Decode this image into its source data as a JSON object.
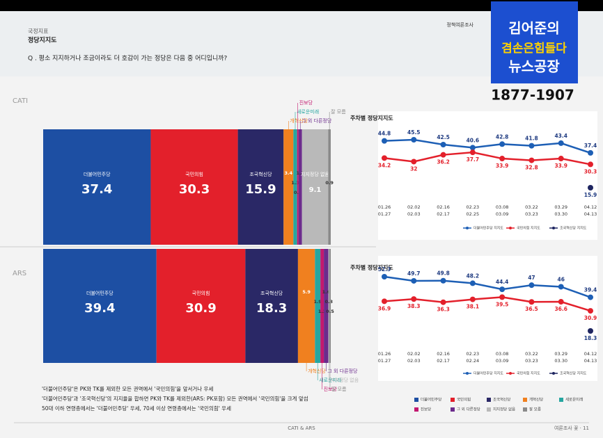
{
  "header": {
    "section": "국정지표",
    "title": "정당지지도",
    "question": "Q . 평소 지지하거나 조금이라도 더 호감이 가는 정당은 다음 중 어디입니까?",
    "top_right": "정책여론조사"
  },
  "overlay": {
    "line1": "김어준의",
    "line2": "겸손은힘들다",
    "line3": "뉴스공장",
    "phone": "1877-1907"
  },
  "notes": [
    "'더불어민주당'은 PK와 TK를 제외한 모든 권역에서 '국민의힘'을 앞서거나 우세",
    "'더불어민주당'과 '조국혁신당'의 지지율을 합하면 PK와 TK를 제외한(ARS: PK포함) 모든 권역에서 '국민의힘'을 크게 앞섬",
    "50대 이하 연령층에서는 '더불어민주당' 우세, 70세 이상 연령층에서는 '국민의힘' 우세"
  ],
  "footer": {
    "center": "CATI & ARS",
    "right": "여론조사 꽃 · 11"
  },
  "chart_data": [
    {
      "type": "stacked-bar",
      "label": "CATI",
      "categories": [
        "더불어민주당",
        "국민의힘",
        "조국혁신당",
        "개혁신당",
        "새로운미래",
        "진보당",
        "그 외 다른정당",
        "지지정당 없음",
        "잘 모름"
      ],
      "values": [
        37.4,
        30.3,
        15.9,
        3.4,
        1.3,
        0.5,
        1.2,
        9.1,
        0.9
      ],
      "colors": [
        "#1d4fa3",
        "#e3202b",
        "#2a2866",
        "#f0801f",
        "#26a6a0",
        "#c2186f",
        "#6b2b8c",
        "#b9b9b9",
        "#8a8a8a"
      ]
    },
    {
      "type": "stacked-bar",
      "label": "ARS",
      "categories": [
        "더불어민주당",
        "국민의힘",
        "조국혁신당",
        "개혁신당",
        "새로운미래",
        "진보당",
        "그 외 다른정당",
        "지지정당 없음",
        "잘 모름"
      ],
      "values": [
        39.4,
        30.9,
        18.3,
        5.9,
        1.9,
        1.2,
        1.6,
        0.3,
        0.5
      ],
      "colors": [
        "#1d4fa3",
        "#e3202b",
        "#2a2866",
        "#f0801f",
        "#26a6a0",
        "#c2186f",
        "#6b2b8c",
        "#b9b9b9",
        "#8a8a8a"
      ]
    },
    {
      "type": "line",
      "title": "주차별 정당지지도",
      "categories": [
        [
          "01.26",
          "01.27"
        ],
        [
          "02.02",
          "02.03"
        ],
        [
          "02.16",
          "02.17"
        ],
        [
          "02.23",
          "02.25"
        ],
        [
          "03.08",
          "03.09"
        ],
        [
          "03.22",
          "03.23"
        ],
        [
          "03.29",
          "03.30"
        ],
        [
          "04.12",
          "04.13"
        ]
      ],
      "series": [
        {
          "name": "더불어민주당 지지도",
          "color": "#1d5fb5",
          "values": [
            44.8,
            45.5,
            42.5,
            40.6,
            42.8,
            41.8,
            43.4,
            37.4
          ]
        },
        {
          "name": "국민의힘 지지도",
          "color": "#e3202b",
          "values": [
            34.2,
            32.0,
            36.2,
            37.7,
            33.9,
            32.8,
            33.9,
            30.3
          ]
        },
        {
          "name": "조국혁신당 지지도",
          "color": "#1e2560",
          "values": [
            null,
            null,
            null,
            null,
            null,
            null,
            null,
            15.9
          ]
        }
      ]
    },
    {
      "type": "line",
      "title": "주차별 정당지지도",
      "categories": [
        [
          "01.26",
          "01.27"
        ],
        [
          "02.02",
          "02.03"
        ],
        [
          "02.16",
          "02.17"
        ],
        [
          "02.23",
          "02.24"
        ],
        [
          "03.08",
          "03.09"
        ],
        [
          "03.22",
          "03.23"
        ],
        [
          "03.29",
          "03.30"
        ],
        [
          "04.12",
          "04.13"
        ]
      ],
      "series": [
        {
          "name": "더불어민주당 지지도",
          "color": "#1d5fb5",
          "values": [
            52.3,
            49.7,
            49.8,
            48.2,
            44.4,
            47.0,
            46.0,
            39.4
          ]
        },
        {
          "name": "국민의힘 지지도",
          "color": "#e3202b",
          "values": [
            36.9,
            38.3,
            36.3,
            38.1,
            39.5,
            36.5,
            36.6,
            30.9
          ]
        },
        {
          "name": "조국혁신당 지지도",
          "color": "#1e2560",
          "values": [
            null,
            null,
            null,
            null,
            null,
            null,
            null,
            18.3
          ]
        }
      ]
    }
  ]
}
